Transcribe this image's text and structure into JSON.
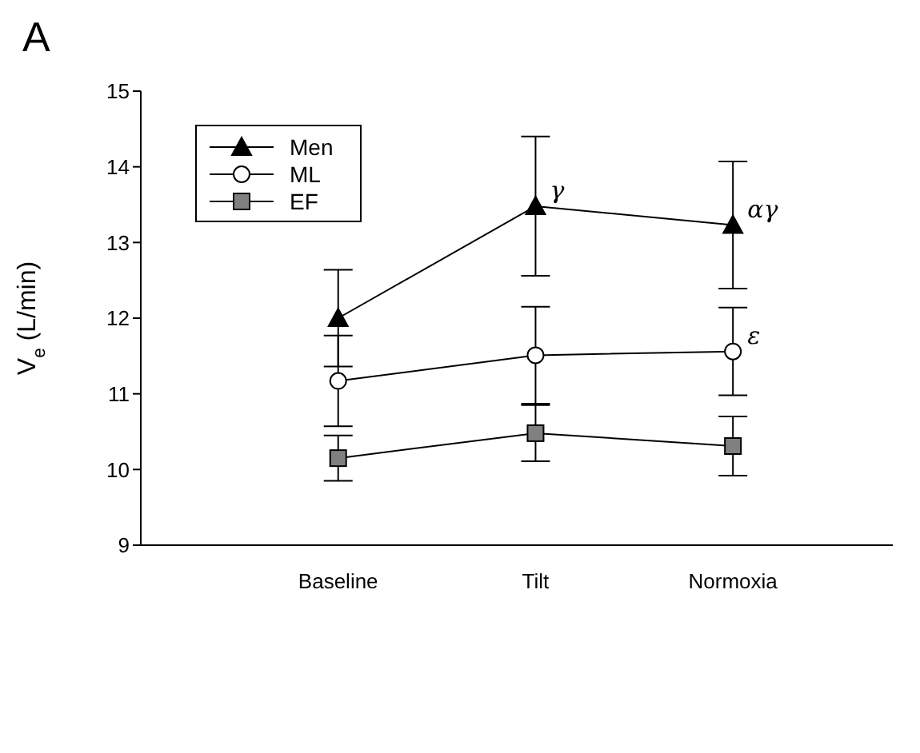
{
  "chart_data": {
    "type": "line",
    "title": "A",
    "ylabel": "V$_{e}$ (L/min)",
    "categories": [
      "Baseline",
      "Tilt",
      "Normoxia"
    ],
    "series": [
      {
        "name": "Men",
        "color": "#000000",
        "marker": "triangle",
        "values": [
          12.0,
          13.48,
          13.23
        ],
        "errors": [
          0.64,
          0.92,
          0.84
        ]
      },
      {
        "name": "ML",
        "color": "#ffffff",
        "marker": "circle",
        "values": [
          11.17,
          11.51,
          11.56
        ],
        "errors": [
          0.6,
          0.64,
          0.58
        ]
      },
      {
        "name": "EF",
        "color": "#808080",
        "marker": "square",
        "values": [
          10.15,
          10.48,
          10.31
        ],
        "errors": [
          0.3,
          0.37,
          0.39
        ]
      }
    ],
    "ylim": [
      9,
      15
    ],
    "yticks": [
      9,
      10,
      11,
      12,
      13,
      14,
      15
    ],
    "grid": false,
    "legend": "top left",
    "annotations": [
      {
        "text": "γ",
        "x": "Tilt",
        "y": 13.48
      },
      {
        "text": "αγ",
        "x": "Normoxia",
        "y": 13.23
      },
      {
        "text": "ε",
        "x": "Normoxia",
        "y": 11.56
      }
    ]
  }
}
